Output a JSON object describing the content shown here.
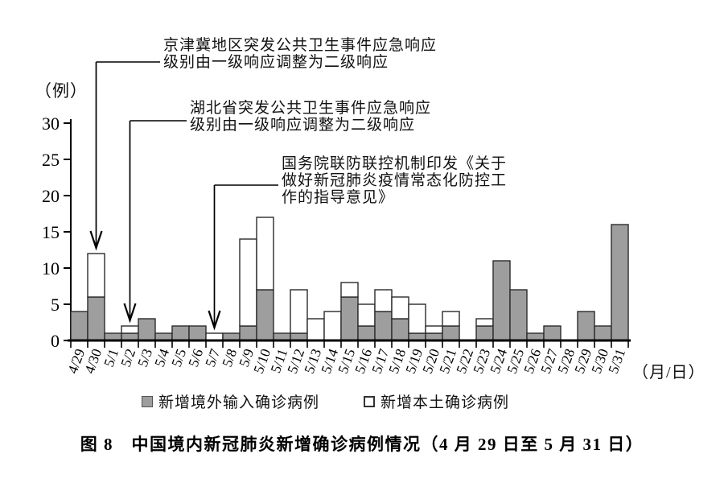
{
  "y_axis": {
    "unit_label": "（例）",
    "ticks": [
      0,
      5,
      10,
      15,
      20,
      25,
      30
    ],
    "max": 30
  },
  "x_axis": {
    "unit_label": "（月/日）"
  },
  "chart_data": {
    "type": "bar",
    "stacked": true,
    "title": "图 8　中国境内新冠肺炎新增确诊病例情况（4 月 29 日至 5 月 31 日）",
    "ylabel": "（例）",
    "xlabel": "（月/日）",
    "ylim": [
      0,
      30
    ],
    "ytick_step": 5,
    "grid": false,
    "legend_position": "bottom",
    "categories": [
      "4/29",
      "4/30",
      "5/1",
      "5/2",
      "5/3",
      "5/4",
      "5/5",
      "5/6",
      "5/7",
      "5/8",
      "5/9",
      "5/10",
      "5/11",
      "5/12",
      "5/13",
      "5/14",
      "5/15",
      "5/16",
      "5/17",
      "5/18",
      "5/19",
      "5/20",
      "5/21",
      "5/22",
      "5/23",
      "5/24",
      "5/25",
      "5/26",
      "5/27",
      "5/28",
      "5/29",
      "5/30",
      "5/31"
    ],
    "series": [
      {
        "name": "新增境外输入确诊病例",
        "color": "#9e9e9e",
        "values": [
          4,
          6,
          1,
          1,
          3,
          1,
          2,
          2,
          0,
          1,
          2,
          7,
          1,
          1,
          0,
          0,
          6,
          2,
          4,
          3,
          1,
          1,
          2,
          0,
          2,
          11,
          7,
          1,
          2,
          0,
          4,
          2,
          16
        ]
      },
      {
        "name": "新增本土确诊病例",
        "color": "#ffffff",
        "values": [
          0,
          6,
          0,
          1,
          0,
          0,
          0,
          0,
          1,
          0,
          12,
          10,
          0,
          6,
          3,
          4,
          2,
          3,
          3,
          3,
          4,
          1,
          2,
          0,
          1,
          0,
          0,
          0,
          0,
          0,
          0,
          0,
          0
        ]
      }
    ]
  },
  "annotations": [
    {
      "lines": [
        "京津冀地区突发公共卫生事件应急响应",
        "级别由一级响应调整为二级响应"
      ],
      "target_category": "4/30"
    },
    {
      "lines": [
        "湖北省突发公共卫生事件应急响应",
        "级别由一级响应调整为二级响应"
      ],
      "target_category": "5/2"
    },
    {
      "lines": [
        "国务院联防联控机制印发《关于",
        "做好新冠肺炎疫情常态化防控工",
        "作的指导意见》"
      ],
      "target_category": "5/7"
    }
  ],
  "legend": {
    "items": [
      {
        "label": "新增境外输入确诊病例",
        "swatch_color": "#9e9e9e"
      },
      {
        "label": "新增本土确诊病例",
        "swatch_color": "#ffffff"
      }
    ]
  },
  "caption": "图 8　中国境内新冠肺炎新增确诊病例情况（4 月 29 日至 5 月 31 日）"
}
